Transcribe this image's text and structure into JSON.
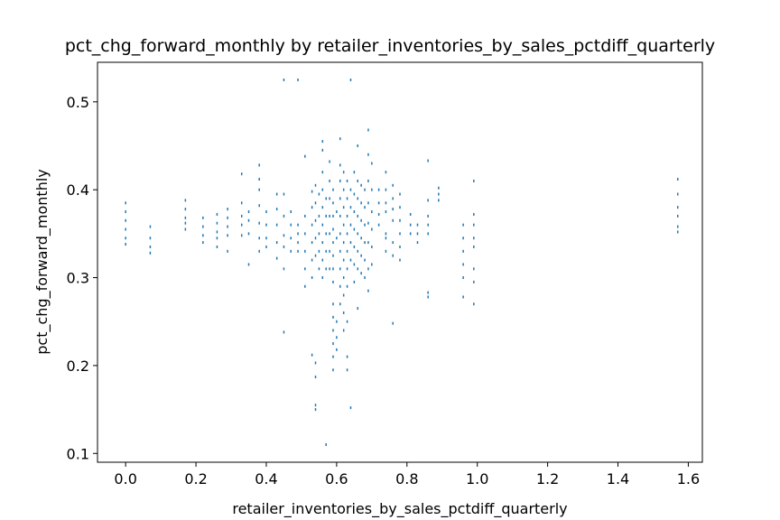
{
  "chart_data": {
    "type": "scatter",
    "title": "pct_chg_forward_monthly by retailer_inventories_by_sales_pctdiff_quarterly",
    "xlabel": "retailer_inventories_by_sales_pctdiff_quarterly",
    "ylabel": "pct_chg_forward_monthly",
    "xlim": [
      -0.08,
      1.64
    ],
    "ylim": [
      0.09,
      0.545
    ],
    "xticks": [
      0.0,
      0.2,
      0.4,
      0.6,
      0.8,
      1.0,
      1.2,
      1.4,
      1.6
    ],
    "xtick_labels": [
      "0.0",
      "0.2",
      "0.4",
      "0.6",
      "0.8",
      "1.0",
      "1.2",
      "1.4",
      "1.6"
    ],
    "yticks": [
      0.1,
      0.2,
      0.3,
      0.4,
      0.5
    ],
    "ytick_labels": [
      "0.1",
      "0.2",
      "0.3",
      "0.4",
      "0.5"
    ],
    "grid": false,
    "marker_color": "#1f77b4",
    "points": [
      [
        0.0,
        0.385
      ],
      [
        0.0,
        0.375
      ],
      [
        0.0,
        0.365
      ],
      [
        0.0,
        0.355
      ],
      [
        0.0,
        0.345
      ],
      [
        0.0,
        0.338
      ],
      [
        0.07,
        0.358
      ],
      [
        0.07,
        0.345
      ],
      [
        0.07,
        0.335
      ],
      [
        0.07,
        0.328
      ],
      [
        0.17,
        0.388
      ],
      [
        0.17,
        0.378
      ],
      [
        0.17,
        0.368
      ],
      [
        0.17,
        0.362
      ],
      [
        0.17,
        0.355
      ],
      [
        0.22,
        0.368
      ],
      [
        0.22,
        0.358
      ],
      [
        0.22,
        0.348
      ],
      [
        0.22,
        0.34
      ],
      [
        0.26,
        0.372
      ],
      [
        0.26,
        0.362
      ],
      [
        0.26,
        0.352
      ],
      [
        0.26,
        0.345
      ],
      [
        0.26,
        0.335
      ],
      [
        0.29,
        0.378
      ],
      [
        0.29,
        0.368
      ],
      [
        0.29,
        0.358
      ],
      [
        0.29,
        0.348
      ],
      [
        0.29,
        0.33
      ],
      [
        0.33,
        0.418
      ],
      [
        0.33,
        0.385
      ],
      [
        0.33,
        0.37
      ],
      [
        0.33,
        0.36
      ],
      [
        0.33,
        0.348
      ],
      [
        0.35,
        0.375
      ],
      [
        0.35,
        0.365
      ],
      [
        0.35,
        0.35
      ],
      [
        0.35,
        0.315
      ],
      [
        0.38,
        0.428
      ],
      [
        0.38,
        0.412
      ],
      [
        0.38,
        0.4
      ],
      [
        0.38,
        0.382
      ],
      [
        0.38,
        0.362
      ],
      [
        0.38,
        0.345
      ],
      [
        0.38,
        0.33
      ],
      [
        0.4,
        0.375
      ],
      [
        0.4,
        0.36
      ],
      [
        0.4,
        0.345
      ],
      [
        0.4,
        0.335
      ],
      [
        0.43,
        0.395
      ],
      [
        0.43,
        0.378
      ],
      [
        0.43,
        0.36
      ],
      [
        0.43,
        0.34
      ],
      [
        0.43,
        0.322
      ],
      [
        0.45,
        0.525
      ],
      [
        0.45,
        0.395
      ],
      [
        0.45,
        0.37
      ],
      [
        0.45,
        0.348
      ],
      [
        0.45,
        0.335
      ],
      [
        0.45,
        0.31
      ],
      [
        0.45,
        0.238
      ],
      [
        0.47,
        0.375
      ],
      [
        0.47,
        0.36
      ],
      [
        0.47,
        0.345
      ],
      [
        0.47,
        0.33
      ],
      [
        0.49,
        0.525
      ],
      [
        0.49,
        0.36
      ],
      [
        0.49,
        0.35
      ],
      [
        0.49,
        0.34
      ],
      [
        0.49,
        0.33
      ],
      [
        0.51,
        0.438
      ],
      [
        0.51,
        0.37
      ],
      [
        0.51,
        0.35
      ],
      [
        0.51,
        0.33
      ],
      [
        0.51,
        0.31
      ],
      [
        0.51,
        0.29
      ],
      [
        0.53,
        0.212
      ],
      [
        0.53,
        0.398
      ],
      [
        0.53,
        0.38
      ],
      [
        0.53,
        0.36
      ],
      [
        0.53,
        0.34
      ],
      [
        0.53,
        0.32
      ],
      [
        0.53,
        0.3
      ],
      [
        0.54,
        0.405
      ],
      [
        0.54,
        0.385
      ],
      [
        0.54,
        0.365
      ],
      [
        0.54,
        0.345
      ],
      [
        0.54,
        0.325
      ],
      [
        0.54,
        0.155
      ],
      [
        0.54,
        0.15
      ],
      [
        0.54,
        0.187
      ],
      [
        0.54,
        0.203
      ],
      [
        0.55,
        0.395
      ],
      [
        0.55,
        0.37
      ],
      [
        0.55,
        0.35
      ],
      [
        0.55,
        0.33
      ],
      [
        0.55,
        0.31
      ],
      [
        0.56,
        0.455
      ],
      [
        0.56,
        0.445
      ],
      [
        0.56,
        0.42
      ],
      [
        0.56,
        0.4
      ],
      [
        0.56,
        0.38
      ],
      [
        0.56,
        0.36
      ],
      [
        0.56,
        0.34
      ],
      [
        0.56,
        0.32
      ],
      [
        0.56,
        0.3
      ],
      [
        0.57,
        0.11
      ],
      [
        0.57,
        0.39
      ],
      [
        0.57,
        0.37
      ],
      [
        0.57,
        0.35
      ],
      [
        0.57,
        0.33
      ],
      [
        0.57,
        0.31
      ],
      [
        0.58,
        0.432
      ],
      [
        0.58,
        0.41
      ],
      [
        0.58,
        0.39
      ],
      [
        0.58,
        0.37
      ],
      [
        0.58,
        0.35
      ],
      [
        0.58,
        0.33
      ],
      [
        0.58,
        0.31
      ],
      [
        0.59,
        0.4
      ],
      [
        0.59,
        0.385
      ],
      [
        0.59,
        0.37
      ],
      [
        0.59,
        0.355
      ],
      [
        0.59,
        0.34
      ],
      [
        0.59,
        0.325
      ],
      [
        0.59,
        0.31
      ],
      [
        0.59,
        0.295
      ],
      [
        0.59,
        0.27
      ],
      [
        0.59,
        0.255
      ],
      [
        0.59,
        0.24
      ],
      [
        0.59,
        0.225
      ],
      [
        0.59,
        0.21
      ],
      [
        0.59,
        0.195
      ],
      [
        0.6,
        0.25
      ],
      [
        0.6,
        0.232
      ],
      [
        0.6,
        0.218
      ],
      [
        0.6,
        0.375
      ],
      [
        0.6,
        0.345
      ],
      [
        0.61,
        0.458
      ],
      [
        0.61,
        0.428
      ],
      [
        0.61,
        0.41
      ],
      [
        0.61,
        0.39
      ],
      [
        0.61,
        0.37
      ],
      [
        0.61,
        0.35
      ],
      [
        0.61,
        0.33
      ],
      [
        0.61,
        0.31
      ],
      [
        0.61,
        0.29
      ],
      [
        0.61,
        0.27
      ],
      [
        0.62,
        0.42
      ],
      [
        0.62,
        0.4
      ],
      [
        0.62,
        0.38
      ],
      [
        0.62,
        0.36
      ],
      [
        0.62,
        0.34
      ],
      [
        0.62,
        0.32
      ],
      [
        0.62,
        0.3
      ],
      [
        0.62,
        0.28
      ],
      [
        0.62,
        0.26
      ],
      [
        0.62,
        0.24
      ],
      [
        0.63,
        0.41
      ],
      [
        0.63,
        0.39
      ],
      [
        0.63,
        0.37
      ],
      [
        0.63,
        0.35
      ],
      [
        0.63,
        0.33
      ],
      [
        0.63,
        0.31
      ],
      [
        0.63,
        0.29
      ],
      [
        0.63,
        0.25
      ],
      [
        0.63,
        0.21
      ],
      [
        0.63,
        0.195
      ],
      [
        0.64,
        0.525
      ],
      [
        0.64,
        0.4
      ],
      [
        0.64,
        0.38
      ],
      [
        0.64,
        0.36
      ],
      [
        0.64,
        0.34
      ],
      [
        0.64,
        0.32
      ],
      [
        0.64,
        0.152
      ],
      [
        0.65,
        0.42
      ],
      [
        0.65,
        0.395
      ],
      [
        0.65,
        0.375
      ],
      [
        0.65,
        0.355
      ],
      [
        0.65,
        0.335
      ],
      [
        0.65,
        0.315
      ],
      [
        0.65,
        0.295
      ],
      [
        0.66,
        0.45
      ],
      [
        0.66,
        0.41
      ],
      [
        0.66,
        0.39
      ],
      [
        0.66,
        0.37
      ],
      [
        0.66,
        0.35
      ],
      [
        0.66,
        0.33
      ],
      [
        0.66,
        0.31
      ],
      [
        0.66,
        0.265
      ],
      [
        0.67,
        0.405
      ],
      [
        0.67,
        0.385
      ],
      [
        0.67,
        0.365
      ],
      [
        0.67,
        0.345
      ],
      [
        0.67,
        0.325
      ],
      [
        0.67,
        0.305
      ],
      [
        0.68,
        0.4
      ],
      [
        0.68,
        0.38
      ],
      [
        0.68,
        0.36
      ],
      [
        0.68,
        0.34
      ],
      [
        0.68,
        0.32
      ],
      [
        0.68,
        0.3
      ],
      [
        0.69,
        0.468
      ],
      [
        0.69,
        0.44
      ],
      [
        0.69,
        0.41
      ],
      [
        0.69,
        0.385
      ],
      [
        0.69,
        0.362
      ],
      [
        0.69,
        0.34
      ],
      [
        0.69,
        0.31
      ],
      [
        0.69,
        0.285
      ],
      [
        0.7,
        0.43
      ],
      [
        0.7,
        0.4
      ],
      [
        0.7,
        0.375
      ],
      [
        0.7,
        0.355
      ],
      [
        0.7,
        0.335
      ],
      [
        0.7,
        0.315
      ],
      [
        0.72,
        0.4
      ],
      [
        0.72,
        0.385
      ],
      [
        0.72,
        0.372
      ],
      [
        0.72,
        0.36
      ],
      [
        0.74,
        0.42
      ],
      [
        0.74,
        0.4
      ],
      [
        0.74,
        0.385
      ],
      [
        0.74,
        0.375
      ],
      [
        0.74,
        0.35
      ],
      [
        0.74,
        0.345
      ],
      [
        0.74,
        0.33
      ],
      [
        0.76,
        0.405
      ],
      [
        0.76,
        0.39
      ],
      [
        0.76,
        0.378
      ],
      [
        0.76,
        0.365
      ],
      [
        0.76,
        0.34
      ],
      [
        0.76,
        0.325
      ],
      [
        0.76,
        0.248
      ],
      [
        0.78,
        0.395
      ],
      [
        0.78,
        0.38
      ],
      [
        0.78,
        0.365
      ],
      [
        0.78,
        0.35
      ],
      [
        0.78,
        0.335
      ],
      [
        0.78,
        0.32
      ],
      [
        0.81,
        0.372
      ],
      [
        0.81,
        0.36
      ],
      [
        0.81,
        0.35
      ],
      [
        0.83,
        0.36
      ],
      [
        0.83,
        0.35
      ],
      [
        0.83,
        0.34
      ],
      [
        0.86,
        0.433
      ],
      [
        0.86,
        0.388
      ],
      [
        0.86,
        0.37
      ],
      [
        0.86,
        0.36
      ],
      [
        0.86,
        0.35
      ],
      [
        0.86,
        0.283
      ],
      [
        0.86,
        0.278
      ],
      [
        0.89,
        0.402
      ],
      [
        0.89,
        0.395
      ],
      [
        0.89,
        0.388
      ],
      [
        0.96,
        0.36
      ],
      [
        0.96,
        0.345
      ],
      [
        0.96,
        0.33
      ],
      [
        0.96,
        0.315
      ],
      [
        0.96,
        0.3
      ],
      [
        0.96,
        0.278
      ],
      [
        0.99,
        0.41
      ],
      [
        0.99,
        0.372
      ],
      [
        0.99,
        0.36
      ],
      [
        0.99,
        0.345
      ],
      [
        0.99,
        0.335
      ],
      [
        0.99,
        0.31
      ],
      [
        0.99,
        0.295
      ],
      [
        0.99,
        0.27
      ],
      [
        1.57,
        0.412
      ],
      [
        1.57,
        0.395
      ],
      [
        1.57,
        0.38
      ],
      [
        1.57,
        0.37
      ],
      [
        1.57,
        0.358
      ],
      [
        1.57,
        0.352
      ]
    ]
  }
}
